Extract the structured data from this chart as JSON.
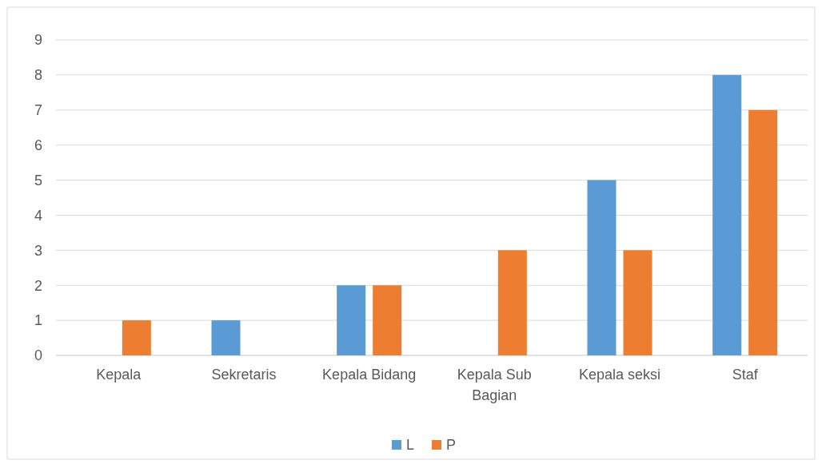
{
  "chart_data": {
    "type": "bar",
    "categories": [
      "Kepala",
      "Sekretaris",
      "Kepala Bidang",
      "Kepala Sub Bagian",
      "Kepala seksi",
      "Staf"
    ],
    "series": [
      {
        "name": "L",
        "color": "#5b9bd5",
        "values": [
          0,
          1,
          2,
          0,
          5,
          8
        ]
      },
      {
        "name": "P",
        "color": "#ed7d31",
        "values": [
          1,
          0,
          2,
          3,
          3,
          7
        ]
      }
    ],
    "ylim": [
      0,
      9
    ],
    "yticks": [
      0,
      1,
      2,
      3,
      4,
      5,
      6,
      7,
      8,
      9
    ],
    "grid": "y",
    "legend": "bottom"
  }
}
